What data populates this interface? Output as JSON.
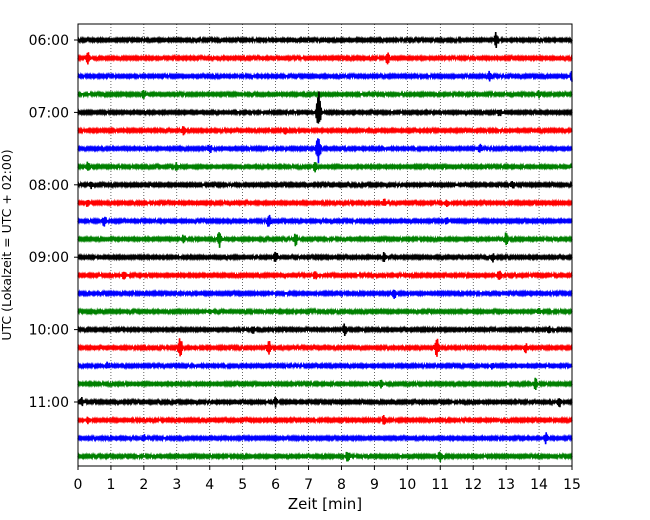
{
  "chart_data": {
    "type": "line",
    "title": "",
    "xlabel": "Zeit  [min]",
    "ylabel": "UTC (Lokalzeit = UTC + 02:00)",
    "xlim": [
      0,
      15
    ],
    "x_ticks": [
      "0",
      "1",
      "2",
      "3",
      "4",
      "5",
      "6",
      "7",
      "8",
      "9",
      "10",
      "11",
      "12",
      "13",
      "14",
      "15"
    ],
    "y_ticks": [
      "06:00",
      "07:00",
      "08:00",
      "09:00",
      "10:00",
      "11:00"
    ],
    "grid": "vertical dotted lines at each minute",
    "trace_colors": [
      "#000000",
      "#ff0000",
      "#0000ff",
      "#008000"
    ],
    "series": [
      {
        "start": "06:00",
        "color": "#000000",
        "events": [
          [
            12.7,
            0.9
          ]
        ]
      },
      {
        "start": "06:15",
        "color": "#ff0000",
        "events": [
          [
            0.3,
            0.6
          ],
          [
            9.4,
            0.6
          ]
        ]
      },
      {
        "start": "06:30",
        "color": "#0000ff",
        "events": [
          [
            12.5,
            0.5
          ],
          [
            15.0,
            0.5
          ]
        ]
      },
      {
        "start": "06:45",
        "color": "#008000",
        "events": [
          [
            2.0,
            0.5
          ],
          [
            14.0,
            0.4
          ]
        ]
      },
      {
        "start": "07:00",
        "color": "#000000",
        "events": [
          [
            7.3,
            2.4
          ],
          [
            12.8,
            0.5
          ]
        ]
      },
      {
        "start": "07:15",
        "color": "#ff0000",
        "events": [
          [
            3.2,
            0.5
          ],
          [
            6.3,
            0.4
          ]
        ]
      },
      {
        "start": "07:30",
        "color": "#0000ff",
        "events": [
          [
            4.0,
            0.5
          ],
          [
            7.3,
            1.6
          ],
          [
            12.2,
            0.5
          ]
        ]
      },
      {
        "start": "07:45",
        "color": "#008000",
        "events": [
          [
            0.3,
            0.5
          ],
          [
            3.0,
            0.4
          ],
          [
            7.2,
            0.5
          ]
        ]
      },
      {
        "start": "08:00",
        "color": "#000000",
        "events": [
          [
            0.4,
            0.4
          ],
          [
            13.2,
            0.4
          ]
        ]
      },
      {
        "start": "08:15",
        "color": "#ff0000",
        "events": [
          [
            0.3,
            0.4
          ],
          [
            9.3,
            0.4
          ],
          [
            11.2,
            0.4
          ]
        ]
      },
      {
        "start": "08:30",
        "color": "#0000ff",
        "events": [
          [
            0.8,
            0.6
          ],
          [
            5.8,
            0.7
          ],
          [
            11.2,
            0.4
          ]
        ]
      },
      {
        "start": "08:45",
        "color": "#008000",
        "events": [
          [
            3.2,
            0.5
          ],
          [
            4.3,
            0.9
          ],
          [
            6.6,
            0.7
          ],
          [
            13.0,
            0.7
          ]
        ]
      },
      {
        "start": "09:00",
        "color": "#000000",
        "events": [
          [
            6.0,
            0.7
          ],
          [
            9.3,
            0.5
          ],
          [
            12.6,
            0.5
          ]
        ]
      },
      {
        "start": "09:15",
        "color": "#ff0000",
        "events": [
          [
            1.4,
            0.5
          ],
          [
            7.2,
            0.5
          ],
          [
            12.8,
            0.7
          ]
        ]
      },
      {
        "start": "09:30",
        "color": "#0000ff",
        "events": [
          [
            9.6,
            0.5
          ]
        ]
      },
      {
        "start": "09:45",
        "color": "#008000",
        "events": [
          [
            4.0,
            0.3
          ],
          [
            14.0,
            0.3
          ]
        ]
      },
      {
        "start": "10:00",
        "color": "#000000",
        "events": [
          [
            5.3,
            0.5
          ],
          [
            8.1,
            0.6
          ],
          [
            14.3,
            0.4
          ]
        ]
      },
      {
        "start": "10:15",
        "color": "#ff0000",
        "events": [
          [
            3.1,
            1.1
          ],
          [
            5.8,
            1.0
          ],
          [
            10.9,
            1.1
          ],
          [
            13.6,
            0.5
          ]
        ]
      },
      {
        "start": "10:30",
        "color": "#0000ff",
        "events": [
          [
            0.9,
            0.4
          ],
          [
            12.6,
            0.4
          ]
        ]
      },
      {
        "start": "10:45",
        "color": "#008000",
        "events": [
          [
            9.2,
            0.4
          ],
          [
            13.9,
            0.6
          ]
        ]
      },
      {
        "start": "11:00",
        "color": "#000000",
        "events": [
          [
            0.1,
            0.5
          ],
          [
            6.0,
            0.5
          ],
          [
            14.6,
            0.6
          ]
        ]
      },
      {
        "start": "11:15",
        "color": "#ff0000",
        "events": [
          [
            0.3,
            0.4
          ],
          [
            9.3,
            0.6
          ]
        ]
      },
      {
        "start": "11:30",
        "color": "#0000ff",
        "events": [
          [
            2.0,
            0.4
          ],
          [
            14.2,
            0.6
          ]
        ]
      },
      {
        "start": "11:45",
        "color": "#008000",
        "events": [
          [
            8.2,
            0.7
          ],
          [
            11.0,
            0.6
          ]
        ]
      }
    ]
  }
}
